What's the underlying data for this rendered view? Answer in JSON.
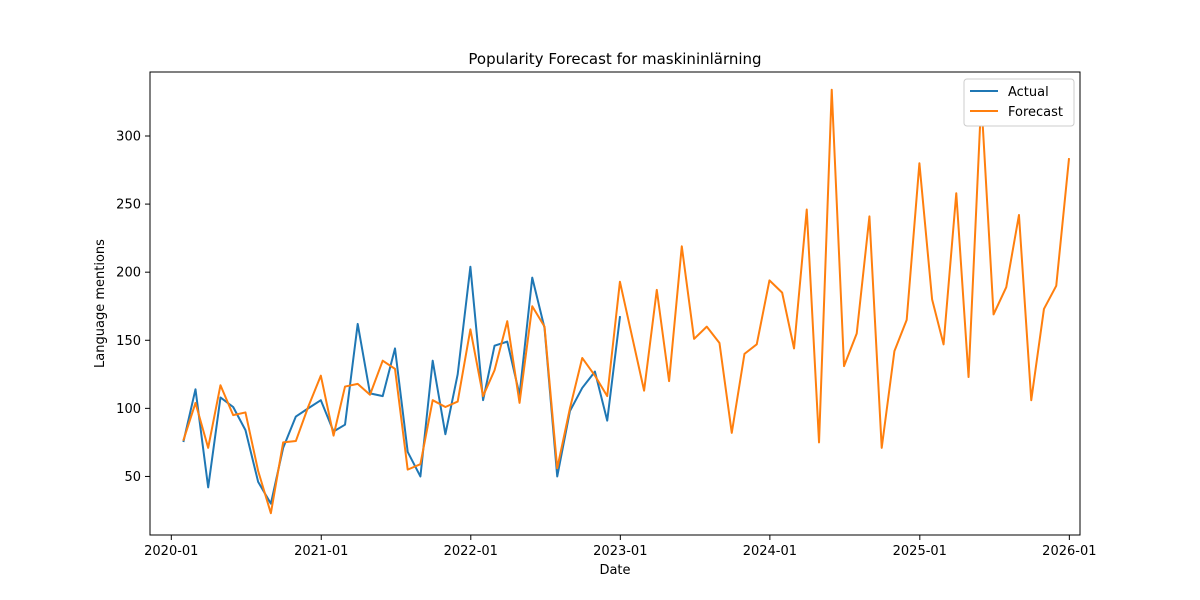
{
  "chart_data": {
    "type": "line",
    "title": "Popularity Forecast for maskininlärning",
    "xlabel": "Date",
    "ylabel": "Language mentions",
    "x_ticks": [
      "2020-01",
      "2021-01",
      "2022-01",
      "2023-01",
      "2024-01",
      "2025-01",
      "2026-01"
    ],
    "y_ticks": [
      50,
      100,
      150,
      200,
      250,
      300
    ],
    "xlim": [
      "2019-11-10",
      "2026-01-27"
    ],
    "ylim": [
      7,
      347
    ],
    "legend": {
      "position": "top-right",
      "entries": [
        "Actual",
        "Forecast"
      ]
    },
    "grid": false,
    "series": [
      {
        "name": "Actual",
        "color": "#1f77b4",
        "points": [
          [
            "2020-01-31",
            76
          ],
          [
            "2020-02-29",
            114
          ],
          [
            "2020-03-31",
            42
          ],
          [
            "2020-04-30",
            108
          ],
          [
            "2020-05-31",
            101
          ],
          [
            "2020-06-30",
            84
          ],
          [
            "2020-07-31",
            46
          ],
          [
            "2020-08-31",
            30
          ],
          [
            "2020-09-30",
            71
          ],
          [
            "2020-10-31",
            94
          ],
          [
            "2020-11-30",
            100
          ],
          [
            "2020-12-31",
            106
          ],
          [
            "2021-01-31",
            83
          ],
          [
            "2021-02-28",
            88
          ],
          [
            "2021-03-31",
            162
          ],
          [
            "2021-04-30",
            111
          ],
          [
            "2021-05-31",
            109
          ],
          [
            "2021-06-30",
            144
          ],
          [
            "2021-07-31",
            68
          ],
          [
            "2021-08-31",
            50
          ],
          [
            "2021-09-30",
            135
          ],
          [
            "2021-10-31",
            81
          ],
          [
            "2021-11-30",
            125
          ],
          [
            "2021-12-31",
            204
          ],
          [
            "2022-01-31",
            106
          ],
          [
            "2022-02-28",
            146
          ],
          [
            "2022-03-31",
            149
          ],
          [
            "2022-04-30",
            110
          ],
          [
            "2022-05-31",
            196
          ],
          [
            "2022-06-30",
            159
          ],
          [
            "2022-07-31",
            50
          ],
          [
            "2022-08-31",
            98
          ],
          [
            "2022-09-30",
            115
          ],
          [
            "2022-10-31",
            127
          ],
          [
            "2022-11-30",
            91
          ],
          [
            "2022-12-31",
            167
          ]
        ]
      },
      {
        "name": "Forecast",
        "color": "#ff7f0e",
        "points": [
          [
            "2020-01-31",
            77
          ],
          [
            "2020-02-29",
            104
          ],
          [
            "2020-03-31",
            71
          ],
          [
            "2020-04-30",
            117
          ],
          [
            "2020-05-31",
            95
          ],
          [
            "2020-06-30",
            97
          ],
          [
            "2020-07-31",
            54
          ],
          [
            "2020-08-31",
            23
          ],
          [
            "2020-09-30",
            75
          ],
          [
            "2020-10-31",
            76
          ],
          [
            "2020-11-30",
            101
          ],
          [
            "2020-12-31",
            124
          ],
          [
            "2021-01-31",
            80
          ],
          [
            "2021-02-28",
            116
          ],
          [
            "2021-03-31",
            118
          ],
          [
            "2021-04-30",
            110
          ],
          [
            "2021-05-31",
            135
          ],
          [
            "2021-06-30",
            129
          ],
          [
            "2021-07-31",
            55
          ],
          [
            "2021-08-31",
            59
          ],
          [
            "2021-09-30",
            106
          ],
          [
            "2021-10-31",
            101
          ],
          [
            "2021-11-30",
            105
          ],
          [
            "2021-12-31",
            158
          ],
          [
            "2022-01-31",
            109
          ],
          [
            "2022-02-28",
            128
          ],
          [
            "2022-03-31",
            164
          ],
          [
            "2022-04-30",
            104
          ],
          [
            "2022-05-31",
            175
          ],
          [
            "2022-06-30",
            160
          ],
          [
            "2022-07-31",
            56
          ],
          [
            "2022-08-31",
            100
          ],
          [
            "2022-09-30",
            137
          ],
          [
            "2022-10-31",
            124
          ],
          [
            "2022-11-30",
            109
          ],
          [
            "2022-12-31",
            193
          ],
          [
            "2023-01-31",
            151
          ],
          [
            "2023-02-28",
            113
          ],
          [
            "2023-03-31",
            187
          ],
          [
            "2023-04-30",
            120
          ],
          [
            "2023-05-31",
            219
          ],
          [
            "2023-06-30",
            151
          ],
          [
            "2023-07-31",
            160
          ],
          [
            "2023-08-31",
            148
          ],
          [
            "2023-09-30",
            82
          ],
          [
            "2023-10-31",
            140
          ],
          [
            "2023-11-30",
            147
          ],
          [
            "2023-12-31",
            194
          ],
          [
            "2024-01-31",
            185
          ],
          [
            "2024-02-29",
            144
          ],
          [
            "2024-03-31",
            246
          ],
          [
            "2024-04-30",
            75
          ],
          [
            "2024-05-31",
            334
          ],
          [
            "2024-06-30",
            131
          ],
          [
            "2024-07-31",
            155
          ],
          [
            "2024-08-31",
            241
          ],
          [
            "2024-09-30",
            71
          ],
          [
            "2024-10-31",
            142
          ],
          [
            "2024-11-30",
            165
          ],
          [
            "2024-12-31",
            280
          ],
          [
            "2025-01-31",
            180
          ],
          [
            "2025-02-28",
            147
          ],
          [
            "2025-03-31",
            258
          ],
          [
            "2025-04-30",
            123
          ],
          [
            "2025-05-31",
            327
          ],
          [
            "2025-06-30",
            169
          ],
          [
            "2025-07-31",
            189
          ],
          [
            "2025-08-31",
            242
          ],
          [
            "2025-09-30",
            106
          ],
          [
            "2025-10-31",
            173
          ],
          [
            "2025-11-30",
            190
          ],
          [
            "2025-12-31",
            283
          ]
        ]
      }
    ]
  }
}
